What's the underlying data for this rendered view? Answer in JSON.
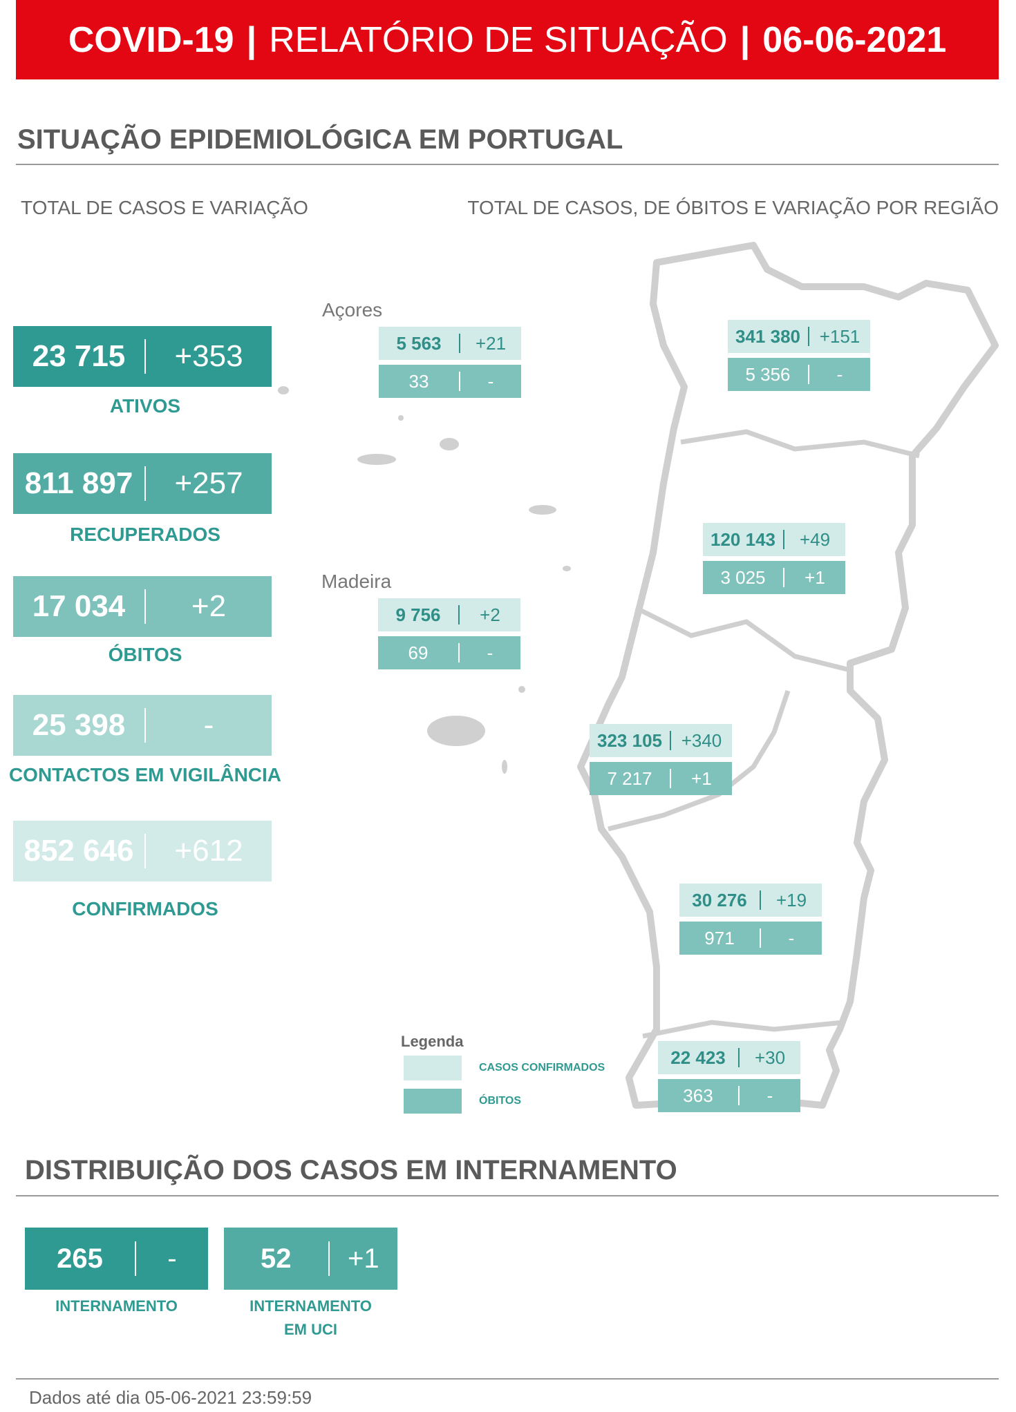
{
  "header": {
    "title_part1": "COVID-19",
    "sep1": "|",
    "title_part2": "RELATÓRIO DE SITUAÇÃO",
    "sep2": "|",
    "date": "06-06-2021"
  },
  "section1": {
    "title": "SITUAÇÃO EPIDEMIOLÓGICA EM PORTUGAL",
    "left_subtitle": "TOTAL DE CASOS E VARIAÇÃO",
    "right_subtitle": "TOTAL DE CASOS, DE ÓBITOS E VARIAÇÃO POR REGIÃO"
  },
  "totals": [
    {
      "value": "23 715",
      "change": "+353",
      "label": "ATIVOS"
    },
    {
      "value": "811 897",
      "change": "+257",
      "label": "RECUPERADOS"
    },
    {
      "value": "17 034",
      "change": "+2",
      "label": "ÓBITOS"
    },
    {
      "value": "25 398",
      "change": "-",
      "label": "CONTACTOS EM VIGILÂNCIA"
    },
    {
      "value": "852 646",
      "change": "+612",
      "label": "CONFIRMADOS"
    }
  ],
  "regions": [
    {
      "name": "Açores",
      "cases": "5 563",
      "cases_change": "+21",
      "deaths": "33",
      "deaths_change": "-"
    },
    {
      "cases": "341 380",
      "cases_change": "+151",
      "deaths": "5 356",
      "deaths_change": "-"
    },
    {
      "cases": "120 143",
      "cases_change": "+49",
      "deaths": "3 025",
      "deaths_change": "+1"
    },
    {
      "name": "Madeira",
      "cases": "9 756",
      "cases_change": "+2",
      "deaths": "69",
      "deaths_change": "-"
    },
    {
      "cases": "323 105",
      "cases_change": "+340",
      "deaths": "7 217",
      "deaths_change": "+1"
    },
    {
      "cases": "30 276",
      "cases_change": "+19",
      "deaths": "971",
      "deaths_change": "-"
    },
    {
      "cases": "22 423",
      "cases_change": "+30",
      "deaths": "363",
      "deaths_change": "-"
    }
  ],
  "legend": {
    "title": "Legenda",
    "items": [
      "CASOS CONFIRMADOS",
      "ÓBITOS"
    ]
  },
  "section2": {
    "title": "DISTRIBUIÇÃO DOS CASOS EM INTERNAMENTO"
  },
  "hospital": [
    {
      "value": "265",
      "change": "-",
      "label_lines": [
        "INTERNAMENTO"
      ]
    },
    {
      "value": "52",
      "change": "+1",
      "label_lines": [
        "INTERNAMENTO",
        "EM UCI"
      ]
    }
  ],
  "footer": "Dados até dia 05-06-2021 23:59:59"
}
